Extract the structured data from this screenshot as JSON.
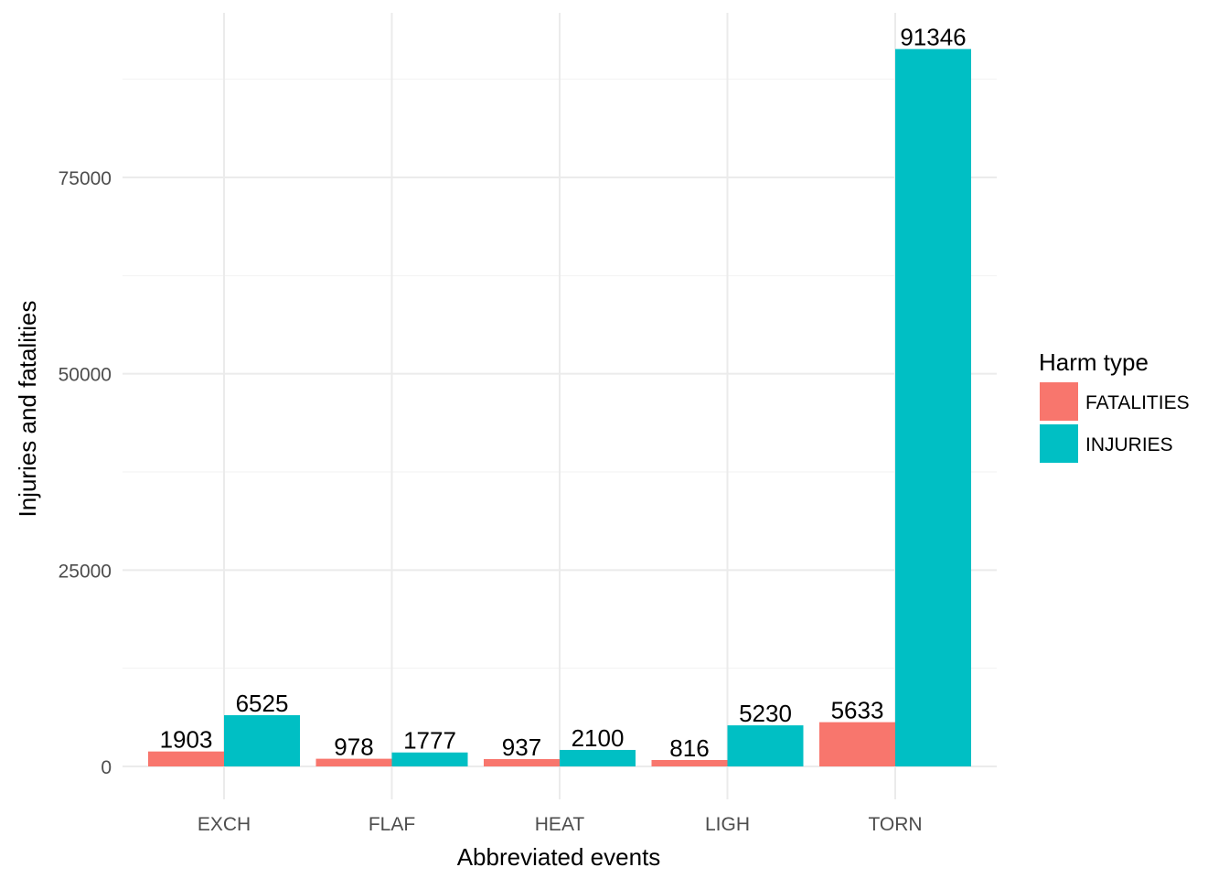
{
  "chart_data": {
    "type": "bar",
    "categories": [
      "EXCH",
      "FLAF",
      "HEAT",
      "LIGH",
      "TORN"
    ],
    "series": [
      {
        "name": "FATALITIES",
        "color": "#F8766D",
        "values": [
          1903,
          978,
          937,
          816,
          5633
        ]
      },
      {
        "name": "INJURIES",
        "color": "#00BFC4",
        "values": [
          6525,
          1777,
          2100,
          5230,
          91346
        ]
      }
    ],
    "xlabel": "Abbreviated events",
    "ylabel": "Injuries and fatalities",
    "ylim": [
      -4567,
      95913
    ],
    "yticks": [
      0,
      25000,
      50000,
      75000
    ],
    "ytick_labels": [
      "0",
      "25000",
      "50000",
      "75000"
    ],
    "grid": true,
    "legend": {
      "title": "Harm type",
      "position": "right"
    }
  }
}
